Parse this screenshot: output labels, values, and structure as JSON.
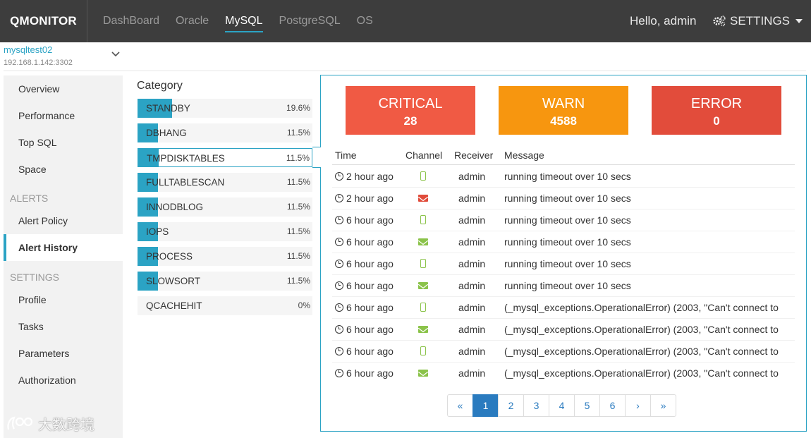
{
  "brand": "QMONITOR",
  "nav": [
    "DashBoard",
    "Oracle",
    "MySQL",
    "PostgreSQL",
    "OS"
  ],
  "nav_active": "MySQL",
  "greeting": "Hello, admin",
  "settings_label": "SETTINGS",
  "instance": {
    "name": "mysqltest02",
    "address": "192.168.1.142:3302"
  },
  "sidebar": {
    "items_top": [
      "Overview",
      "Performance",
      "Top SQL",
      "Space"
    ],
    "alerts_header": "ALERTS",
    "items_alerts": [
      "Alert Policy",
      "Alert History"
    ],
    "settings_header": "SETTINGS",
    "items_settings": [
      "Profile",
      "Tasks",
      "Parameters",
      "Authorization"
    ],
    "active": "Alert History"
  },
  "category": {
    "title": "Category",
    "accent": "#2ba3c4",
    "items": [
      {
        "name": "STANDBY",
        "pct": "19.6%",
        "fraction": 0.196
      },
      {
        "name": "DBHANG",
        "pct": "11.5%",
        "fraction": 0.115
      },
      {
        "name": "TMPDISKTABLES",
        "pct": "11.5%",
        "fraction": 0.115
      },
      {
        "name": "FULLTABLESCAN",
        "pct": "11.5%",
        "fraction": 0.115
      },
      {
        "name": "INNODBLOG",
        "pct": "11.5%",
        "fraction": 0.115
      },
      {
        "name": "IOPS",
        "pct": "11.5%",
        "fraction": 0.115
      },
      {
        "name": "PROCESS",
        "pct": "11.5%",
        "fraction": 0.115
      },
      {
        "name": "SLOWSORT",
        "pct": "11.5%",
        "fraction": 0.115
      },
      {
        "name": "QCACHEHIT",
        "pct": "0%",
        "fraction": 0
      }
    ],
    "selected": "TMPDISKTABLES"
  },
  "stats": [
    {
      "label": "CRITICAL",
      "value": "28",
      "color": "#f05a44"
    },
    {
      "label": "WARN",
      "value": "4588",
      "color": "#f7960f"
    },
    {
      "label": "ERROR",
      "value": "0",
      "color": "#e24c3b"
    }
  ],
  "table": {
    "headers": [
      "Time",
      "Channel",
      "Receiver",
      "Message"
    ],
    "rows": [
      {
        "time": "2 hour ago",
        "channel": "phone-icon",
        "receiver": "admin",
        "message": "running timeout over 10 secs"
      },
      {
        "time": "2 hour ago",
        "channel": "mail-red-icon",
        "receiver": "admin",
        "message": "running timeout over 10 secs"
      },
      {
        "time": "6 hour ago",
        "channel": "phone-icon",
        "receiver": "admin",
        "message": "running timeout over 10 secs"
      },
      {
        "time": "6 hour ago",
        "channel": "mail-green-icon",
        "receiver": "admin",
        "message": "running timeout over 10 secs"
      },
      {
        "time": "6 hour ago",
        "channel": "phone-icon",
        "receiver": "admin",
        "message": "running timeout over 10 secs"
      },
      {
        "time": "6 hour ago",
        "channel": "mail-green-icon",
        "receiver": "admin",
        "message": "running timeout over 10 secs"
      },
      {
        "time": "6 hour ago",
        "channel": "phone-icon",
        "receiver": "admin",
        "message": "(_mysql_exceptions.OperationalError) (2003, \"Can't connect to"
      },
      {
        "time": "6 hour ago",
        "channel": "mail-green-icon",
        "receiver": "admin",
        "message": "(_mysql_exceptions.OperationalError) (2003, \"Can't connect to"
      },
      {
        "time": "6 hour ago",
        "channel": "phone-icon",
        "receiver": "admin",
        "message": "(_mysql_exceptions.OperationalError) (2003, \"Can't connect to"
      },
      {
        "time": "6 hour ago",
        "channel": "mail-green-icon",
        "receiver": "admin",
        "message": "(_mysql_exceptions.OperationalError) (2003, \"Can't connect to"
      }
    ]
  },
  "pagination": [
    "«",
    "1",
    "2",
    "3",
    "4",
    "5",
    "6",
    "›",
    "»"
  ],
  "pagination_active": "1",
  "watermark": "大数跨境",
  "colors": {
    "phone": "#8bc34a",
    "mail_green": "#8bc34a",
    "mail_red": "#e04b3a",
    "link": "#2a7bbf"
  }
}
